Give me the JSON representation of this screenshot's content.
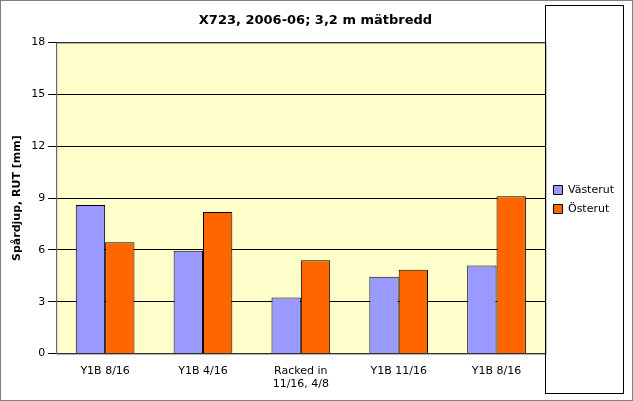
{
  "chart_data": {
    "type": "bar",
    "title": "X723, 2006-06; 3,2 m mätbredd",
    "y_label": "Spårdjup, RUT [mm]",
    "categories": [
      "Y1B 8/16",
      "Y1B 4/16",
      [
        "Racked in",
        "11/16, 4/8"
      ],
      "Y1B 11/16",
      "Y1B 8/16"
    ],
    "series": [
      {
        "name": "Västerut",
        "color": "#9999ff",
        "values": [
          8.6,
          5.95,
          3.25,
          4.45,
          5.1
        ]
      },
      {
        "name": "Österut",
        "color": "#ff6600",
        "values": [
          6.45,
          8.2,
          5.4,
          4.85,
          9.1
        ]
      }
    ],
    "ylim": [
      0,
      18
    ],
    "yticks": [
      0,
      3,
      6,
      9,
      12,
      15,
      18
    ],
    "grid": true,
    "legend": "right"
  }
}
